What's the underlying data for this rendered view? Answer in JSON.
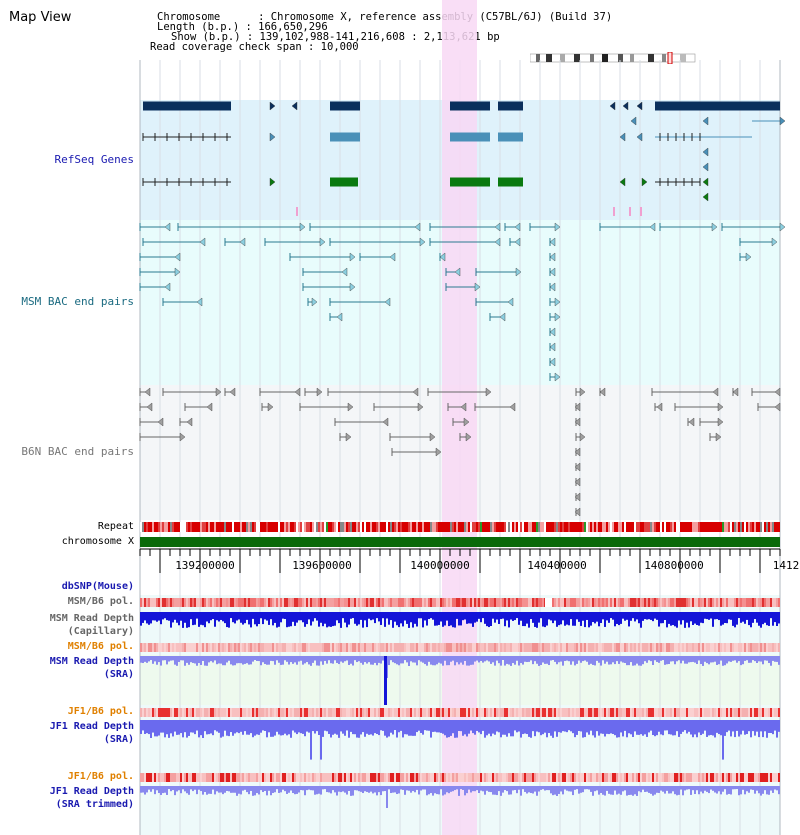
{
  "title": "Map View",
  "info": {
    "chromosome": "Chromosome      : Chromosome X, reference assembly (C57BL/6J) (Build 37)",
    "length": "Length (b.p.) : 166,650,296",
    "show": "Show (b.p.) : 139,102,988-141,216,608 : 2,113,621 bp",
    "coverage": "Read coverage check span : 10,000"
  },
  "tracks": {
    "refseq": "RefSeq Genes",
    "msm_bac": "MSM BAC end pairs",
    "b6n_bac": "B6N BAC end pairs",
    "repeat": "Repeat",
    "chromosome": "chromosome X",
    "dbsnp": "dbSNP(Mouse)",
    "msm_pol": "MSM/B6 pol.",
    "msm_depth_cap_1": "MSM Read Depth",
    "msm_depth_cap_2": "(Capillary)",
    "msm_pol2": "MSM/B6 pol.",
    "msm_depth_sra_1": "MSM Read Depth",
    "msm_depth_sra_2": "(SRA)",
    "jf1_pol": "JF1/B6 pol.",
    "jf1_depth_sra_1": "JF1 Read Depth",
    "jf1_depth_sra_2": "(SRA)",
    "jf1_pol2": "JF1/B6 pol.",
    "jf1_depth_trim_1": "JF1 Read Depth",
    "jf1_depth_trim_2": "(SRA trimmed)"
  },
  "ruler": {
    "ticks": [
      "139200000",
      "139600000",
      "140000000",
      "140400000",
      "140800000",
      "1412"
    ]
  },
  "colors": {
    "gene_dark": "#0a2f5c",
    "gene_mid": "#4a90b8",
    "gene_green": "#0a7a10",
    "msm_bac": "#2a7a90",
    "b6n_bac": "#666666",
    "highlight": "#f8d8f4",
    "refseq_bg": "#dff2fb",
    "msm_bg": "#e8fcfc",
    "b6n_bg": "#f4f6f8",
    "label_blue": "#1a1ab0",
    "label_teal": "#1a6a80",
    "label_orange": "#e08000"
  }
}
